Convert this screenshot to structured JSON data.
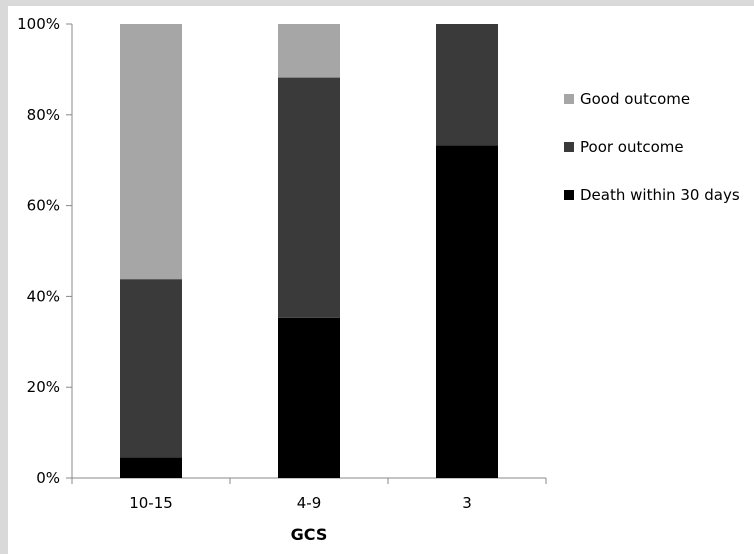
{
  "chart_data": {
    "type": "bar",
    "stacked": true,
    "normalized": true,
    "categories": [
      "10-15",
      "4-9",
      "3"
    ],
    "series": [
      {
        "name": "Death within 30 days",
        "values": [
          4.5,
          35.3,
          73.3
        ],
        "color": "#000000"
      },
      {
        "name": "Poor outcome",
        "values": [
          39.3,
          52.9,
          26.7
        ],
        "color": "#3a3a3a"
      },
      {
        "name": "Good outcome",
        "values": [
          56.2,
          11.8,
          0
        ],
        "color": "#a6a6a6"
      }
    ],
    "legend_order": [
      "Good outcome",
      "Poor outcome",
      "Death within 30 days"
    ],
    "xlabel": "GCS",
    "ylabel": "",
    "ylim": [
      0,
      100
    ],
    "yticks": [
      "0%",
      "20%",
      "40%",
      "60%",
      "80%",
      "100%"
    ],
    "grid": false,
    "legend_position": "right"
  }
}
